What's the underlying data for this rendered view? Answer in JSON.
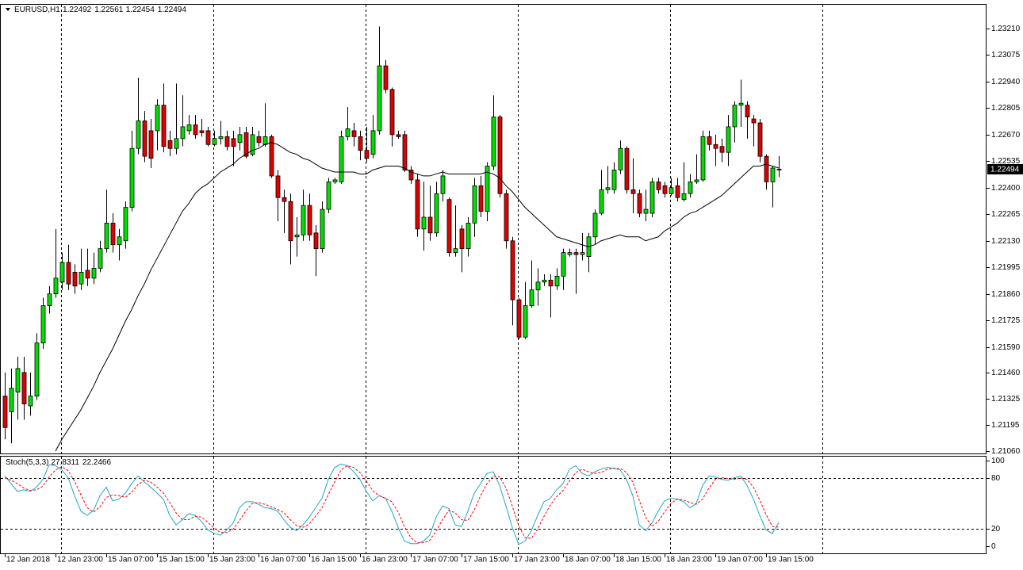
{
  "chart_data": [
    {
      "type": "candlestick",
      "title": "EURUSD,H1",
      "categories": [
        "12 Jan 2018",
        null,
        null,
        null,
        null,
        null,
        null,
        null,
        "12 Jan 23:00",
        null,
        null,
        null,
        null,
        null,
        null,
        null,
        "15 Jan 07:00",
        null,
        null,
        null,
        null,
        null,
        null,
        null,
        "15 Jan 15:00",
        null,
        null,
        null,
        null,
        null,
        null,
        null,
        "15 Jan 23:00",
        null,
        null,
        null,
        null,
        null,
        null,
        null,
        "16 Jan 07:00",
        null,
        null,
        null,
        null,
        null,
        null,
        null,
        "16 Jan 15:00",
        null,
        null,
        null,
        null,
        null,
        null,
        null,
        "16 Jan 23:00",
        null,
        null,
        null,
        null,
        null,
        null,
        null,
        "17 Jan 07:00",
        null,
        null,
        null,
        null,
        null,
        null,
        null,
        "17 Jan 15:00",
        null,
        null,
        null,
        null,
        null,
        null,
        null,
        "17 Jan 23:00",
        null,
        null,
        null,
        null,
        null,
        null,
        null,
        "18 Jan 07:00",
        null,
        null,
        null,
        null,
        null,
        null,
        null,
        "18 Jan 15:00",
        null,
        null,
        null,
        null,
        null,
        null,
        null,
        "18 Jan 23:00",
        null,
        null,
        null,
        null,
        null,
        null,
        null,
        "19 Jan 07:00",
        null,
        null,
        null,
        null,
        null,
        null,
        null,
        "19 Jan 15:00",
        null,
        null
      ],
      "open": [
        1.2134,
        1.2126,
        1.2136,
        1.2146,
        1.2129,
        1.2134,
        1.2161,
        1.218,
        1.2186,
        1.2192,
        1.2202,
        1.2197,
        1.2191,
        1.2198,
        1.2194,
        1.2199,
        1.2209,
        1.2222,
        1.2211,
        1.2213,
        1.223,
        1.226,
        1.2274,
        1.2269,
        1.2269,
        1.2282,
        1.2264,
        1.226,
        1.2265,
        1.2269,
        1.2272,
        1.2269,
        1.2269,
        1.2262,
        1.2265,
        1.2266,
        1.2265,
        1.2263,
        1.2268,
        1.2257,
        1.2266,
        1.2262,
        1.2266,
        1.2246,
        1.2235,
        1.2233,
        1.2215,
        1.2216,
        1.2231,
        1.2217,
        1.2209,
        1.2229,
        1.2243,
        1.2243,
        1.2266,
        1.2269,
        1.2266,
        1.2259,
        1.2257,
        1.2269,
        1.2302,
        1.229,
        1.2267,
        1.2267,
        1.2249,
        1.2244,
        1.2219,
        1.2225,
        1.2217,
        1.2237,
        1.2234,
        1.2207,
        1.2219,
        1.2209,
        1.2222,
        1.2241,
        1.2228,
        1.2251,
        1.2276,
        1.2237,
        1.2213,
        1.2183,
        1.2164,
        1.218,
        1.2188,
        1.2192,
        1.2193,
        1.219,
        1.2195,
        1.2206,
        1.2207,
        1.2206,
        1.2205,
        1.2215,
        1.2227,
        1.2239,
        1.2239,
        1.2249,
        1.226,
        1.2239,
        1.2237,
        1.2227,
        1.2227,
        1.2243,
        1.2241,
        1.2237,
        1.2241,
        1.2234,
        1.2237,
        1.2243,
        1.2244,
        1.2266,
        1.2262,
        1.2261,
        1.2258,
        1.2271,
        1.2282,
        1.2282,
        1.2275,
        1.2273,
        1.2256,
        1.2243,
        1.22492
      ],
      "high": [
        1.2146,
        1.2148,
        1.2154,
        1.2154,
        1.2146,
        1.2166,
        1.2184,
        1.219,
        1.2219,
        1.2207,
        1.2211,
        1.2201,
        1.2209,
        1.2209,
        1.2207,
        1.2213,
        1.2239,
        1.2227,
        1.2219,
        1.2233,
        1.2269,
        1.2296,
        1.2279,
        1.2275,
        1.2285,
        1.2293,
        1.2269,
        1.2293,
        1.2287,
        1.2277,
        1.2277,
        1.2275,
        1.2271,
        1.2269,
        1.2274,
        1.2269,
        1.2269,
        1.2271,
        1.2271,
        1.2271,
        1.2269,
        1.2283,
        1.2267,
        1.2249,
        1.2239,
        1.2237,
        1.2225,
        1.2239,
        1.2237,
        1.2221,
        1.2233,
        1.2245,
        1.2245,
        1.2269,
        1.2281,
        1.2273,
        1.2269,
        1.2271,
        1.2277,
        1.2322,
        1.2305,
        1.2291,
        1.2269,
        1.2269,
        1.2251,
        1.2247,
        1.2243,
        1.2241,
        1.2243,
        1.2249,
        1.2235,
        1.2231,
        1.2221,
        1.2225,
        1.2245,
        1.2246,
        1.2253,
        1.2287,
        1.2277,
        1.2239,
        1.2215,
        1.2184,
        1.2192,
        1.2203,
        1.2199,
        1.2196,
        1.2196,
        1.2199,
        1.2209,
        1.2209,
        1.2209,
        1.2217,
        1.2217,
        1.2229,
        1.2249,
        1.2251,
        1.2253,
        1.2264,
        1.2261,
        1.2255,
        1.2239,
        1.2239,
        1.2245,
        1.2245,
        1.2243,
        1.2245,
        1.2245,
        1.2253,
        1.2247,
        1.2257,
        1.2269,
        1.2269,
        1.2267,
        1.2265,
        1.2277,
        1.2284,
        1.2295,
        1.2284,
        1.2277,
        1.2275,
        1.2257,
        1.2251,
        1.22561
      ],
      "low": [
        1.2112,
        1.211,
        1.2122,
        1.2122,
        1.2124,
        1.2132,
        1.2158,
        1.2176,
        1.2184,
        1.2188,
        1.2188,
        1.2186,
        1.2188,
        1.219,
        1.2191,
        1.2197,
        1.2207,
        1.2207,
        1.2203,
        1.2209,
        1.2228,
        1.2257,
        1.2253,
        1.225,
        1.2259,
        1.2258,
        1.2256,
        1.2257,
        1.2261,
        1.2267,
        1.2265,
        1.2266,
        1.2261,
        1.2261,
        1.2262,
        1.2259,
        1.2251,
        1.2259,
        1.2255,
        1.2256,
        1.2261,
        1.2261,
        1.2245,
        1.2223,
        1.2217,
        1.2201,
        1.2205,
        1.2213,
        1.2213,
        1.2195,
        1.2207,
        1.2227,
        1.2242,
        1.2242,
        1.2264,
        1.2261,
        1.2254,
        1.2253,
        1.2255,
        1.2267,
        1.2288,
        1.2261,
        1.2265,
        1.2248,
        1.2242,
        1.2215,
        1.2208,
        1.2213,
        1.2215,
        1.2233,
        1.2205,
        1.2205,
        1.2197,
        1.2205,
        1.2215,
        1.2225,
        1.2223,
        1.2249,
        1.2235,
        1.2209,
        1.217,
        1.2163,
        1.2163,
        1.2179,
        1.218,
        1.219,
        1.2174,
        1.2188,
        1.2188,
        1.2205,
        1.2186,
        1.2203,
        1.2197,
        1.2211,
        1.2226,
        1.2237,
        1.2237,
        1.2247,
        1.2237,
        1.2227,
        1.2225,
        1.2223,
        1.2225,
        1.2237,
        1.2235,
        1.2236,
        1.2233,
        1.2233,
        1.2235,
        1.2242,
        1.2243,
        1.2259,
        1.2251,
        1.2253,
        1.2251,
        1.2263,
        1.2271,
        1.2265,
        1.2261,
        1.2253,
        1.2239,
        1.223,
        1.22454
      ],
      "close": [
        1.2118,
        1.2138,
        1.2148,
        1.213,
        1.2134,
        1.2161,
        1.218,
        1.2186,
        1.2194,
        1.2202,
        1.2191,
        1.219,
        1.2197,
        1.2194,
        1.2199,
        1.2209,
        1.2222,
        1.2211,
        1.2215,
        1.223,
        1.226,
        1.2274,
        1.2256,
        1.2255,
        1.2282,
        1.2261,
        1.226,
        1.2265,
        1.2271,
        1.2272,
        1.2267,
        1.2268,
        1.2262,
        1.2265,
        1.2266,
        1.2261,
        1.2261,
        1.2267,
        1.2256,
        1.2267,
        1.2263,
        1.2266,
        1.2246,
        1.2235,
        1.2233,
        1.2213,
        1.2216,
        1.2231,
        1.2216,
        1.2209,
        1.2229,
        1.2243,
        1.2244,
        1.2266,
        1.227,
        1.2266,
        1.2259,
        1.2255,
        1.2269,
        1.2302,
        1.229,
        1.2267,
        1.2266,
        1.2249,
        1.2244,
        1.2219,
        1.2225,
        1.2217,
        1.2237,
        1.2246,
        1.2207,
        1.2209,
        1.2209,
        1.2222,
        1.2241,
        1.2228,
        1.2251,
        1.2276,
        1.2237,
        1.2213,
        1.2183,
        1.2164,
        1.218,
        1.2188,
        1.2192,
        1.2193,
        1.219,
        1.2195,
        1.2207,
        1.2207,
        1.2206,
        1.2207,
        1.2215,
        1.2227,
        1.2239,
        1.224,
        1.2249,
        1.226,
        1.2239,
        1.2237,
        1.2227,
        1.2229,
        1.2243,
        1.2239,
        1.2237,
        1.224,
        1.2235,
        1.2237,
        1.2243,
        1.2244,
        1.2266,
        1.2262,
        1.226,
        1.2258,
        1.2271,
        1.2282,
        1.2283,
        1.2276,
        1.2273,
        1.2256,
        1.2243,
        1.225,
        1.22494
      ],
      "up_color": "#00e000",
      "down_color": "#e00000",
      "overlay": {
        "color": "#000000",
        "values": [
          null,
          null,
          null,
          null,
          null,
          null,
          null,
          null,
          1.2106,
          1.2112,
          1.2117,
          1.2122,
          1.2127,
          1.2133,
          1.2139,
          1.2146,
          1.2152,
          1.2158,
          1.2165,
          1.2172,
          1.2178,
          1.2185,
          1.2191,
          1.2198,
          1.2204,
          1.221,
          1.2216,
          1.2222,
          1.2228,
          1.2232,
          1.2237,
          1.224,
          1.2242,
          1.2245,
          1.2248,
          1.225,
          1.2252,
          1.2255,
          1.2257,
          1.2259,
          1.226,
          1.2262,
          1.2263,
          1.2262,
          1.226,
          1.2258,
          1.2257,
          1.2255,
          1.2254,
          1.2252,
          1.225,
          1.2249,
          1.2248,
          1.2248,
          1.2248,
          1.2248,
          1.2247,
          1.2247,
          1.2249,
          1.225,
          1.2251,
          1.2251,
          1.2251,
          1.225,
          1.2248,
          1.2247,
          1.2246,
          1.2246,
          1.2247,
          1.2248,
          1.2247,
          1.2247,
          1.2247,
          1.2247,
          1.2247,
          1.2247,
          1.2248,
          1.2247,
          1.2245,
          1.2241,
          1.2238,
          1.2234,
          1.223,
          1.2227,
          1.2224,
          1.2221,
          1.2218,
          1.2215,
          1.2214,
          1.2213,
          1.2212,
          1.2211,
          1.221,
          1.2211,
          1.2213,
          1.2214,
          1.2215,
          1.2216,
          1.2215,
          1.2215,
          1.2215,
          1.2213,
          1.2214,
          1.2215,
          1.2218,
          1.222,
          1.2222,
          1.2225,
          1.2227,
          1.2228,
          1.223,
          1.2232,
          1.2234,
          1.2236,
          1.2239,
          1.2242,
          1.2245,
          1.2248,
          1.2251,
          1.2251,
          1.2252,
          1.2251,
          1.225
        ]
      },
      "ylim": [
        1.21048,
        1.23335
      ],
      "yticks": [
        {
          "value": 1.2321,
          "label": "1.23210"
        },
        1.23075,
        {
          "value": 1.2294,
          "label": "1.22940"
        },
        1.22805,
        {
          "value": 1.2267,
          "label": "1.22670"
        },
        1.22535,
        {
          "value": 1.224,
          "label": "1.22400"
        },
        1.22265,
        {
          "value": 1.2213,
          "label": "1.22130"
        },
        1.21995,
        {
          "value": 1.2186,
          "label": "1.21860"
        },
        1.21725,
        {
          "value": 1.2159,
          "label": "1.21590"
        },
        {
          "value": 1.2146,
          "label": "1.21460"
        },
        1.21325,
        1.21195,
        {
          "value": 1.2106,
          "label": "1.21060"
        }
      ]
    },
    {
      "type": "line",
      "title": "Stoch(5,3,3)",
      "series": [
        {
          "color": "#22a6c9",
          "values": [
            82,
            73,
            64,
            66,
            64,
            69,
            78,
            95,
            94,
            89,
            80,
            59,
            41,
            36,
            42,
            59,
            69,
            53,
            55,
            62,
            73,
            82,
            75,
            69,
            62,
            55,
            36,
            25,
            31,
            38,
            36,
            29,
            19,
            15,
            13,
            19,
            27,
            45,
            52,
            52,
            49,
            45,
            44,
            41,
            31,
            22,
            18,
            25,
            34,
            45,
            56,
            78,
            92,
            96,
            94,
            87,
            78,
            64,
            53,
            59,
            56,
            41,
            22,
            6,
            3,
            3,
            6,
            13,
            34,
            47,
            44,
            25,
            23,
            41,
            62,
            73,
            85,
            87,
            71,
            47,
            22,
            2,
            6,
            18,
            36,
            52,
            56,
            66,
            73,
            90,
            94,
            85,
            82,
            87,
            90,
            92,
            91,
            89,
            78,
            59,
            25,
            18,
            27,
            41,
            53,
            56,
            55,
            52,
            45,
            50,
            71,
            82,
            81,
            78,
            77,
            80,
            82,
            71,
            55,
            36,
            19,
            15,
            27.8311
          ]
        },
        {
          "color": "#ff0000",
          "dashed": true,
          "values": [
            80,
            77,
            73,
            68,
            65,
            66,
            70,
            81,
            89,
            93,
            88,
            76,
            60,
            45,
            40,
            46,
            57,
            60,
            59,
            57,
            63,
            72,
            77,
            75,
            69,
            62,
            51,
            39,
            31,
            31,
            35,
            34,
            28,
            21,
            16,
            16,
            20,
            30,
            41,
            50,
            51,
            49,
            46,
            43,
            39,
            31,
            24,
            22,
            26,
            35,
            45,
            60,
            75,
            89,
            94,
            92,
            86,
            76,
            65,
            59,
            56,
            52,
            40,
            23,
            10,
            4,
            4,
            7,
            18,
            31,
            42,
            39,
            31,
            30,
            42,
            59,
            73,
            82,
            81,
            68,
            47,
            24,
            10,
            9,
            20,
            35,
            48,
            58,
            65,
            76,
            86,
            90,
            87,
            85,
            86,
            90,
            91,
            91,
            86,
            75,
            54,
            34,
            23,
            29,
            40,
            50,
            55,
            54,
            51,
            49,
            55,
            68,
            78,
            80,
            79,
            78,
            80,
            78,
            69,
            54,
            37,
            23,
            22.2466
          ]
        }
      ],
      "ylim": [
        -9.26,
        105.56
      ],
      "yticks": [
        0,
        20,
        80,
        100
      ]
    }
  ]
}
